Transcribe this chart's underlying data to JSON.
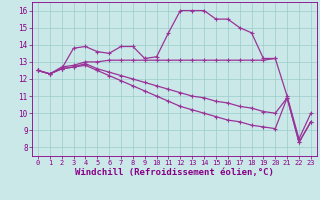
{
  "xlabel": "Windchill (Refroidissement éolien,°C)",
  "background_color": "#cbe8e8",
  "grid_color": "#99cccc",
  "line_color": "#993399",
  "xlim": [
    -0.5,
    23.5
  ],
  "ylim": [
    7.5,
    16.5
  ],
  "xticks": [
    0,
    1,
    2,
    3,
    4,
    5,
    6,
    7,
    8,
    9,
    10,
    11,
    12,
    13,
    14,
    15,
    16,
    17,
    18,
    19,
    20,
    21,
    22,
    23
  ],
  "yticks": [
    8,
    9,
    10,
    11,
    12,
    13,
    14,
    15,
    16
  ],
  "lines": [
    {
      "x": [
        0,
        1,
        2,
        3,
        4,
        5,
        6,
        7,
        8,
        9,
        10,
        11,
        12,
        13,
        14,
        15,
        16,
        17,
        18,
        19,
        20,
        21,
        22,
        23
      ],
      "y": [
        12.5,
        12.3,
        12.6,
        13.8,
        13.9,
        13.6,
        13.5,
        13.9,
        13.9,
        13.2,
        13.3,
        14.7,
        16.0,
        16.0,
        16.0,
        15.5,
        15.5,
        15.0,
        14.7,
        13.2,
        13.2,
        11.0,
        8.5,
        10.0
      ]
    },
    {
      "x": [
        0,
        1,
        2,
        3,
        4,
        5,
        6,
        7,
        8,
        9,
        10,
        11,
        12,
        13,
        14,
        15,
        16,
        17,
        18,
        19,
        20,
        21,
        22,
        23
      ],
      "y": [
        12.5,
        12.3,
        12.6,
        12.7,
        12.9,
        12.6,
        12.4,
        12.2,
        12.0,
        11.8,
        11.6,
        11.4,
        11.2,
        11.0,
        10.9,
        10.7,
        10.6,
        10.4,
        10.3,
        10.1,
        10.0,
        10.9,
        8.3,
        9.5
      ]
    },
    {
      "x": [
        0,
        1,
        2,
        3,
        4,
        5,
        6,
        7,
        8,
        9,
        10,
        11,
        12,
        13,
        14,
        15,
        16,
        17,
        18,
        19,
        20
      ],
      "y": [
        12.5,
        12.3,
        12.7,
        12.8,
        13.0,
        13.0,
        13.1,
        13.1,
        13.1,
        13.1,
        13.1,
        13.1,
        13.1,
        13.1,
        13.1,
        13.1,
        13.1,
        13.1,
        13.1,
        13.1,
        13.2
      ]
    },
    {
      "x": [
        0,
        1,
        2,
        3,
        4,
        5,
        6,
        7,
        8,
        9,
        10,
        11,
        12,
        13,
        14,
        15,
        16,
        17,
        18,
        19,
        20,
        21,
        22,
        23
      ],
      "y": [
        12.5,
        12.3,
        12.6,
        12.7,
        12.8,
        12.5,
        12.2,
        11.9,
        11.6,
        11.3,
        11.0,
        10.7,
        10.4,
        10.2,
        10.0,
        9.8,
        9.6,
        9.5,
        9.3,
        9.2,
        9.1,
        10.9,
        8.3,
        9.5
      ]
    }
  ],
  "fontsize_label": 6.5,
  "fontsize_tick": 5.5,
  "tick_color": "#880088",
  "label_color": "#880088"
}
